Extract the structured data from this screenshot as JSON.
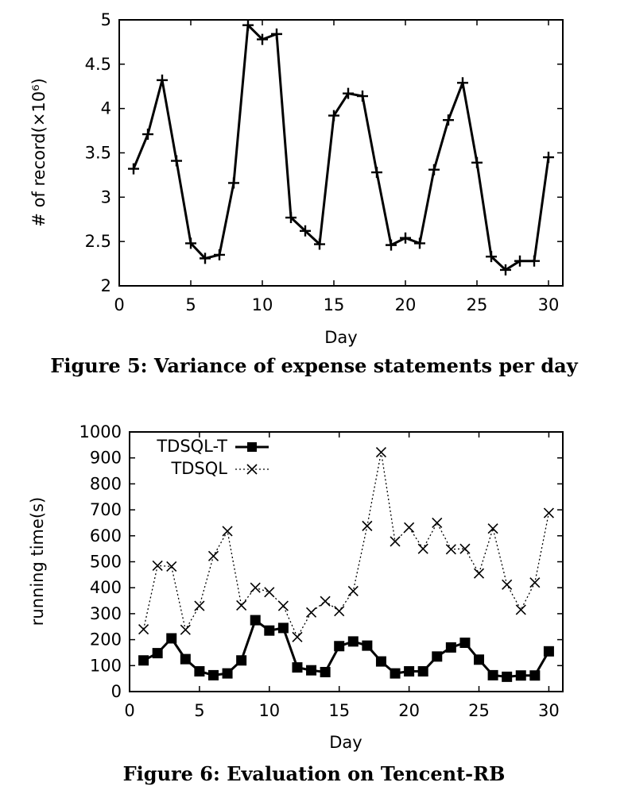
{
  "figures": [
    {
      "caption": "Figure 5: Variance of expense statements per day",
      "chart_data": {
        "type": "line",
        "title": "",
        "xlabel": "Day",
        "ylabel": "# of record(×10⁶)",
        "xlim": [
          0,
          31
        ],
        "ylim": [
          2,
          5
        ],
        "xticks": [
          "0",
          "5",
          "10",
          "15",
          "20",
          "25",
          "30"
        ],
        "yticks": [
          "2",
          "2.5",
          "3",
          "3.5",
          "4",
          "4.5",
          "5"
        ],
        "grid": false,
        "series": [
          {
            "marker": "plus",
            "style": "solid",
            "color": "#000000",
            "x": [
              1,
              2,
              3,
              4,
              5,
              6,
              7,
              8,
              9,
              10,
              11,
              12,
              13,
              14,
              15,
              16,
              17,
              18,
              19,
              20,
              21,
              22,
              23,
              24,
              25,
              26,
              27,
              28,
              29,
              30
            ],
            "values": [
              3.32,
              3.71,
              4.32,
              3.41,
              2.48,
              2.31,
              2.35,
              3.16,
              4.94,
              4.78,
              4.84,
              2.77,
              2.62,
              2.47,
              3.92,
              4.17,
              4.14,
              3.28,
              2.46,
              2.54,
              2.48,
              3.31,
              3.87,
              4.29,
              3.39,
              2.33,
              2.18,
              2.28,
              2.28,
              3.45
            ]
          }
        ]
      }
    },
    {
      "caption": "Figure 6: Evaluation on Tencent-RB",
      "chart_data": {
        "type": "line",
        "title": "",
        "xlabel": "Day",
        "ylabel": "running time(s)",
        "xlim": [
          0,
          31
        ],
        "ylim": [
          0,
          1000
        ],
        "xticks": [
          "0",
          "5",
          "10",
          "15",
          "20",
          "25",
          "30"
        ],
        "yticks": [
          "0",
          "100",
          "200",
          "300",
          "400",
          "500",
          "600",
          "700",
          "800",
          "900",
          "1000"
        ],
        "grid": false,
        "legend_position": "top-left",
        "series": [
          {
            "name": "TDSQL-T",
            "marker": "square",
            "style": "solid",
            "color": "#000000",
            "x": [
              1,
              2,
              3,
              4,
              5,
              6,
              7,
              8,
              9,
              10,
              11,
              12,
              13,
              14,
              15,
              16,
              17,
              18,
              19,
              20,
              21,
              22,
              23,
              24,
              25,
              26,
              27,
              28,
              29,
              30
            ],
            "values": [
              120,
              148,
              205,
              125,
              78,
              63,
              70,
              120,
              275,
              235,
              245,
              93,
              82,
              75,
              175,
              193,
              177,
              116,
              70,
              78,
              78,
              135,
              170,
              188,
              123,
              63,
              57,
              62,
              62,
              155
            ]
          },
          {
            "name": "TDSQL",
            "marker": "x",
            "style": "dotted",
            "color": "#000000",
            "x": [
              1,
              2,
              3,
              4,
              5,
              6,
              7,
              8,
              9,
              10,
              11,
              12,
              13,
              14,
              15,
              16,
              17,
              18,
              19,
              20,
              21,
              22,
              23,
              24,
              25,
              26,
              27,
              28,
              29,
              30
            ],
            "values": [
              240,
              485,
              482,
              238,
              330,
              522,
              618,
              332,
              400,
              383,
              330,
              210,
              305,
              348,
              310,
              387,
              638,
              922,
              578,
              632,
              550,
              650,
              548,
              550,
              455,
              628,
              412,
              315,
              420,
              688
            ]
          }
        ]
      }
    }
  ]
}
